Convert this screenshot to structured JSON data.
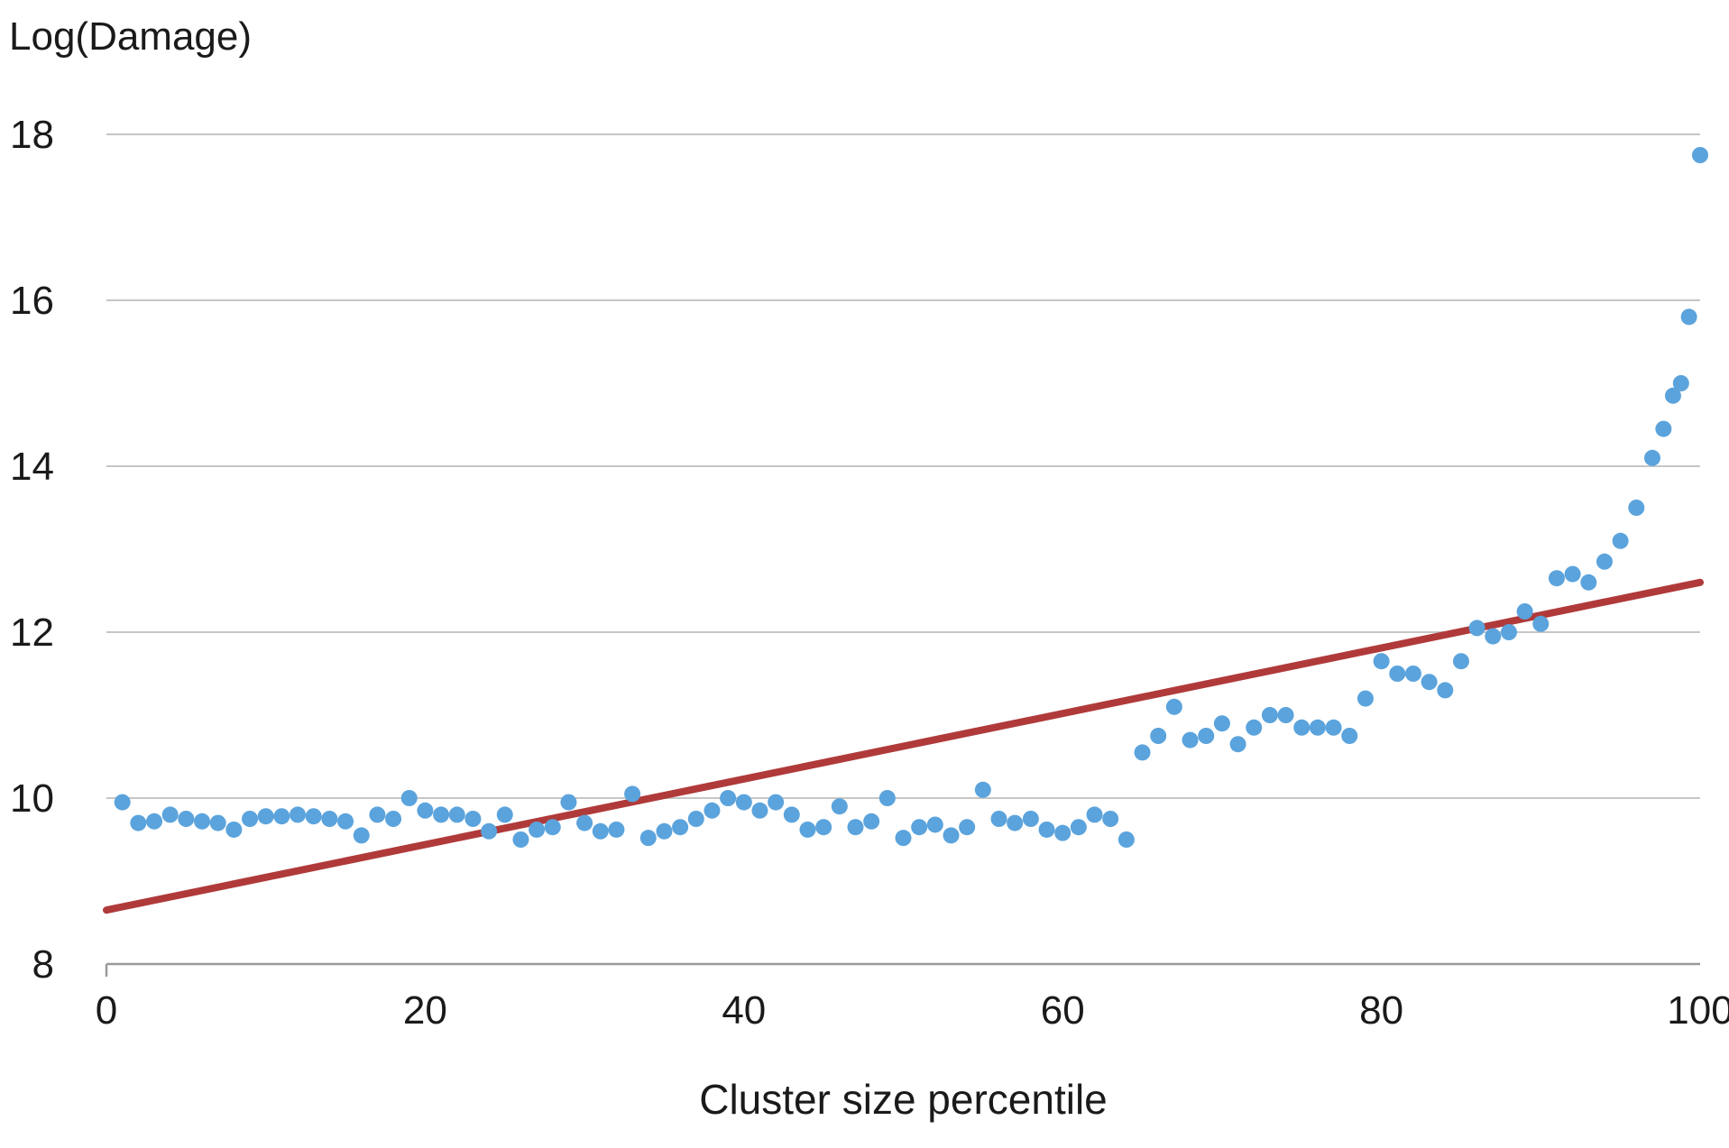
{
  "chart_data": {
    "type": "scatter",
    "title": "",
    "ylabel": "Log(Damage)",
    "xlabel": "Cluster size percentile",
    "xlim": [
      0,
      100
    ],
    "ylim": [
      8,
      18
    ],
    "xticks": [
      0,
      20,
      40,
      60,
      80,
      100
    ],
    "yticks": [
      8,
      10,
      12,
      14,
      16,
      18
    ],
    "grid": "horizontal",
    "legend": "none",
    "colors": {
      "points": "#5ba3dc",
      "trend": "#b03a3a",
      "grid": "#c6c6c6",
      "axis": "#9a9a9a",
      "text": "#1a1a1a",
      "background": "#ffffff"
    },
    "trend_line": {
      "type": "linear",
      "x1": 0,
      "y1": 8.65,
      "x2": 100,
      "y2": 12.6
    },
    "points": [
      [
        1,
        9.95
      ],
      [
        2,
        9.7
      ],
      [
        3,
        9.72
      ],
      [
        4,
        9.8
      ],
      [
        5,
        9.75
      ],
      [
        6,
        9.72
      ],
      [
        7,
        9.7
      ],
      [
        8,
        9.62
      ],
      [
        9,
        9.75
      ],
      [
        10,
        9.78
      ],
      [
        11,
        9.78
      ],
      [
        12,
        9.8
      ],
      [
        13,
        9.78
      ],
      [
        14,
        9.75
      ],
      [
        15,
        9.72
      ],
      [
        16,
        9.55
      ],
      [
        17,
        9.8
      ],
      [
        18,
        9.75
      ],
      [
        19,
        10.0
      ],
      [
        20,
        9.85
      ],
      [
        21,
        9.8
      ],
      [
        22,
        9.8
      ],
      [
        23,
        9.75
      ],
      [
        24,
        9.6
      ],
      [
        25,
        9.8
      ],
      [
        26,
        9.5
      ],
      [
        27,
        9.62
      ],
      [
        28,
        9.65
      ],
      [
        29,
        9.95
      ],
      [
        30,
        9.7
      ],
      [
        31,
        9.6
      ],
      [
        32,
        9.62
      ],
      [
        33,
        10.05
      ],
      [
        34,
        9.52
      ],
      [
        35,
        9.6
      ],
      [
        36,
        9.65
      ],
      [
        37,
        9.75
      ],
      [
        38,
        9.85
      ],
      [
        39,
        10.0
      ],
      [
        40,
        9.95
      ],
      [
        41,
        9.85
      ],
      [
        42,
        9.95
      ],
      [
        43,
        9.8
      ],
      [
        44,
        9.62
      ],
      [
        45,
        9.65
      ],
      [
        46,
        9.9
      ],
      [
        47,
        9.65
      ],
      [
        48,
        9.72
      ],
      [
        49,
        10.0
      ],
      [
        50,
        9.52
      ],
      [
        51,
        9.65
      ],
      [
        52,
        9.68
      ],
      [
        53,
        9.55
      ],
      [
        54,
        9.65
      ],
      [
        55,
        10.1
      ],
      [
        56,
        9.75
      ],
      [
        57,
        9.7
      ],
      [
        58,
        9.75
      ],
      [
        59,
        9.62
      ],
      [
        60,
        9.58
      ],
      [
        61,
        9.65
      ],
      [
        62,
        9.8
      ],
      [
        63,
        9.75
      ],
      [
        64,
        9.5
      ],
      [
        65,
        10.55
      ],
      [
        66,
        10.75
      ],
      [
        67,
        11.1
      ],
      [
        68,
        10.7
      ],
      [
        69,
        10.75
      ],
      [
        70,
        10.9
      ],
      [
        71,
        10.65
      ],
      [
        72,
        10.85
      ],
      [
        73,
        11.0
      ],
      [
        74,
        11.0
      ],
      [
        75,
        10.85
      ],
      [
        76,
        10.85
      ],
      [
        77,
        10.85
      ],
      [
        78,
        10.75
      ],
      [
        79,
        11.2
      ],
      [
        80,
        11.65
      ],
      [
        81,
        11.5
      ],
      [
        82,
        11.5
      ],
      [
        83,
        11.4
      ],
      [
        84,
        11.3
      ],
      [
        85,
        11.65
      ],
      [
        86,
        12.05
      ],
      [
        87,
        11.95
      ],
      [
        88,
        12.0
      ],
      [
        89,
        12.25
      ],
      [
        90,
        12.1
      ],
      [
        91,
        12.65
      ],
      [
        92,
        12.7
      ],
      [
        93,
        12.6
      ],
      [
        94,
        12.85
      ],
      [
        95,
        13.1
      ],
      [
        96,
        13.5
      ],
      [
        97,
        14.1
      ],
      [
        97.7,
        14.45
      ],
      [
        98.3,
        14.85
      ],
      [
        98.8,
        15.0
      ],
      [
        99.3,
        15.8
      ],
      [
        100,
        17.75
      ]
    ]
  }
}
